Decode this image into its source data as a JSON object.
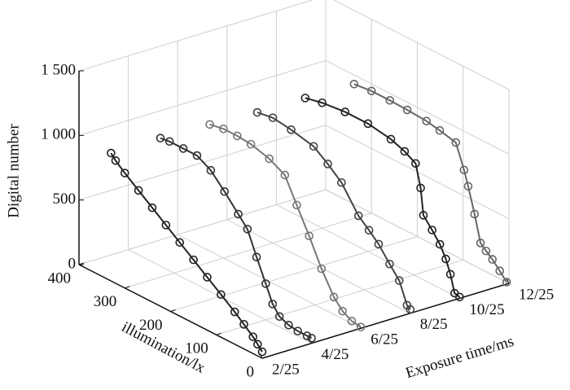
{
  "chart_data": {
    "type": "line3d",
    "xlabel": "illumination/lx",
    "ylabel": "Exposure time/ms",
    "zlabel": "Digital number",
    "xlim": [
      0,
      400
    ],
    "xticks": [
      0,
      100,
      200,
      300,
      400
    ],
    "ylim": [
      0.08,
      0.48
    ],
    "yticks": [
      {
        "value": 0.08,
        "label": "2/25"
      },
      {
        "value": 0.16,
        "label": "4/25"
      },
      {
        "value": 0.24,
        "label": "6/25"
      },
      {
        "value": 0.32,
        "label": "8/25"
      },
      {
        "value": 0.4,
        "label": "10/25"
      },
      {
        "value": 0.48,
        "label": "12/25"
      }
    ],
    "zlim": [
      0,
      1500
    ],
    "zticks": [
      0,
      {
        "value": 500,
        "label": "500"
      },
      {
        "value": 1000,
        "label": "1 000"
      },
      {
        "value": 1500,
        "label": "1 500"
      }
    ],
    "grid": true,
    "series": [
      {
        "y": 0.08,
        "color": "#222222",
        "x": [
          330,
          320,
          300,
          270,
          240,
          210,
          180,
          150,
          120,
          90,
          60,
          40,
          20,
          10,
          0
        ],
        "values": [
          990,
          950,
          890,
          810,
          730,
          650,
          570,
          490,
          410,
          330,
          250,
          190,
          130,
          90,
          50
        ]
      },
      {
        "y": 0.16,
        "color": "#333333",
        "x": [
          330,
          310,
          280,
          250,
          220,
          190,
          160,
          140,
          120,
          100,
          85,
          70,
          50,
          30,
          10,
          0
        ],
        "values": [
          990,
          1000,
          1000,
          1000,
          940,
          830,
          710,
          630,
          450,
          280,
          150,
          80,
          50,
          40,
          40,
          40
        ]
      },
      {
        "y": 0.24,
        "color": "#777777",
        "x": [
          330,
          300,
          270,
          240,
          200,
          166,
          140,
          113,
          86,
          59,
          40,
          20,
          0
        ],
        "values": [
          980,
          1000,
          1000,
          990,
          950,
          885,
          700,
          510,
          305,
          135,
          60,
          20,
          10
        ]
      },
      {
        "y": 0.32,
        "color": "#444444",
        "x": [
          334,
          300,
          260,
          211,
          180,
          150,
          113,
          90,
          69,
          45,
          24,
          7,
          0
        ],
        "values": [
          950,
          970,
          950,
          910,
          830,
          740,
          550,
          480,
          410,
          300,
          210,
          50,
          30
        ]
      },
      {
        "y": 0.4,
        "color": "#222222",
        "x": [
          337,
          300,
          250,
          200,
          150,
          120,
          96,
          85,
          79,
          60,
          43,
          30,
          20,
          11,
          0
        ],
        "values": [
          940,
          970,
          990,
          990,
          960,
          920,
          870,
          700,
          500,
          420,
          340,
          250,
          150,
          20,
          10
        ]
      },
      {
        "y": 0.48,
        "color": "#666666",
        "x": [
          338,
          300,
          260,
          222,
          180,
          151,
          116,
          98,
          89,
          75,
          62,
          50,
          36,
          20,
          5
        ],
        "values": [
          930,
          945,
          945,
          940,
          930,
          910,
          880,
          700,
          590,
          400,
          200,
          160,
          120,
          60,
          0
        ]
      }
    ]
  }
}
